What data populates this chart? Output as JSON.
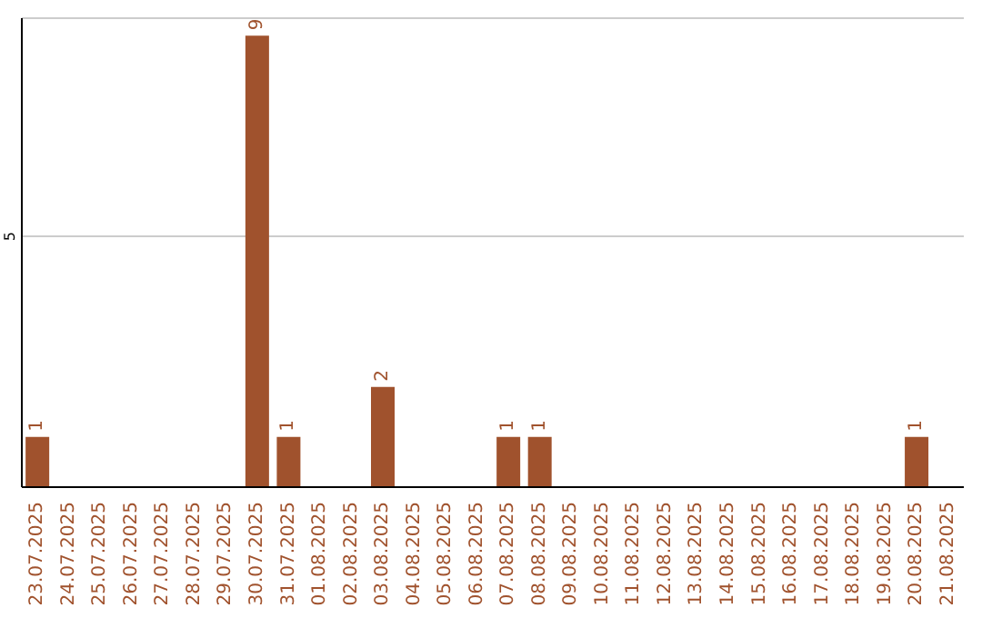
{
  "chart_data": {
    "type": "bar",
    "categories": [
      "23.07.2025",
      "24.07.2025",
      "25.07.2025",
      "26.07.2025",
      "27.07.2025",
      "28.07.2025",
      "29.07.2025",
      "30.07.2025",
      "31.07.2025",
      "01.08.2025",
      "02.08.2025",
      "03.08.2025",
      "04.08.2025",
      "05.08.2025",
      "06.08.2025",
      "07.08.2025",
      "08.08.2025",
      "09.08.2025",
      "10.08.2025",
      "11.08.2025",
      "12.08.2025",
      "13.08.2025",
      "14.08.2025",
      "15.08.2025",
      "16.08.2025",
      "17.08.2025",
      "18.08.2025",
      "19.08.2025",
      "20.08.2025",
      "21.08.2025"
    ],
    "values": [
      1,
      0,
      0,
      0,
      0,
      0,
      0,
      9,
      1,
      0,
      0,
      2,
      0,
      0,
      0,
      1,
      1,
      0,
      0,
      0,
      0,
      0,
      0,
      0,
      0,
      0,
      0,
      0,
      1,
      0
    ],
    "value_labels": [
      "1",
      null,
      null,
      null,
      null,
      null,
      null,
      "9",
      "1",
      null,
      null,
      "2",
      null,
      null,
      null,
      "1",
      "1",
      null,
      null,
      null,
      null,
      null,
      null,
      null,
      null,
      null,
      null,
      null,
      "1",
      null
    ],
    "color": "#a0522d",
    "ylim": [
      0,
      9.35
    ],
    "yticks": [
      5
    ],
    "grid": "y"
  }
}
